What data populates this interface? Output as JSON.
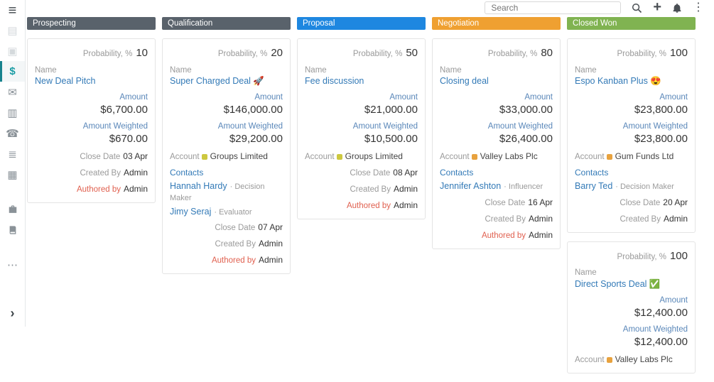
{
  "topbar": {
    "search_placeholder": "Search",
    "icons": [
      "search-icon",
      "plus-icon",
      "bell-icon",
      "kebab-icon"
    ]
  },
  "sidebar": {
    "items": [
      {
        "name": "menu-icon",
        "state": "menu"
      },
      {
        "name": "image-icon",
        "state": "faint"
      },
      {
        "name": "id-card-icon",
        "state": "faint"
      },
      {
        "name": "opportunities-icon",
        "state": "active"
      },
      {
        "name": "email-icon",
        "state": "normal"
      },
      {
        "name": "tasks-icon",
        "state": "normal"
      },
      {
        "name": "calls-icon",
        "state": "normal"
      },
      {
        "name": "checklist-icon",
        "state": "normal"
      },
      {
        "name": "calendar-icon",
        "state": "normal"
      },
      {
        "name": "spacer"
      },
      {
        "name": "briefcase-icon",
        "state": "normal"
      },
      {
        "name": "book-icon",
        "state": "normal"
      },
      {
        "name": "spacer"
      },
      {
        "name": "more-icon",
        "state": "normal"
      }
    ],
    "bottom_item": {
      "name": "chevron-right-icon"
    }
  },
  "labels": {
    "probability": "Probability, %",
    "name": "Name",
    "amount": "Amount",
    "amount_weighted": "Amount Weighted",
    "account": "Account",
    "contacts": "Contacts",
    "close_date": "Close Date",
    "created_by": "Created By",
    "authored_by": "Authored by"
  },
  "board": {
    "columns": [
      {
        "title": "Prospecting",
        "color": "#59626b",
        "cards": [
          {
            "probability": "10",
            "name": "New Deal Pitch",
            "amount": "$6,700.00",
            "amount_weighted": "$670.00",
            "close_date": "03 Apr",
            "created_by": "Admin",
            "authored_by": "Admin"
          }
        ]
      },
      {
        "title": "Qualification",
        "color": "#59626b",
        "cards": [
          {
            "probability": "20",
            "name": "Super Charged Deal 🚀",
            "amount": "$146,000.00",
            "amount_weighted": "$29,200.00",
            "account": {
              "name": "Groups Limited",
              "dot_color": "#cdc83f"
            },
            "contacts": [
              {
                "name": "Hannah Hardy",
                "role": "Decision Maker"
              },
              {
                "name": "Jimy Seraj",
                "role": "Evaluator"
              }
            ],
            "close_date": "07 Apr",
            "created_by": "Admin",
            "authored_by": "Admin"
          }
        ]
      },
      {
        "title": "Proposal",
        "color": "#1e87e0",
        "cards": [
          {
            "probability": "50",
            "name": "Fee discussion",
            "amount": "$21,000.00",
            "amount_weighted": "$10,500.00",
            "account": {
              "name": "Groups Limited",
              "dot_color": "#cdc83f"
            },
            "close_date": "08 Apr",
            "created_by": "Admin",
            "authored_by": "Admin"
          }
        ]
      },
      {
        "title": "Negotiation",
        "color": "#efa031",
        "cards": [
          {
            "probability": "80",
            "name": "Closing deal",
            "amount": "$33,000.00",
            "amount_weighted": "$26,400.00",
            "account": {
              "name": "Valley Labs Plc",
              "dot_color": "#e8a23e"
            },
            "contacts": [
              {
                "name": "Jennifer Ashton",
                "role": "Influencer"
              }
            ],
            "close_date": "16 Apr",
            "created_by": "Admin",
            "authored_by": "Admin"
          }
        ]
      },
      {
        "title": "Closed Won",
        "color": "#80b351",
        "cards": [
          {
            "probability": "100",
            "name": "Espo Kanban Plus 😍",
            "amount": "$23,800.00",
            "amount_weighted": "$23,800.00",
            "account": {
              "name": "Gum Funds Ltd",
              "dot_color": "#e8a23e"
            },
            "contacts": [
              {
                "name": "Barry Ted",
                "role": "Decision Maker"
              }
            ],
            "close_date": "20 Apr",
            "created_by": "Admin"
          },
          {
            "probability": "100",
            "name": "Direct Sports Deal ✅",
            "amount": "$12,400.00",
            "amount_weighted": "$12,400.00",
            "account": {
              "name": "Valley Labs Plc",
              "dot_color": "#e8a23e"
            }
          }
        ]
      }
    ]
  }
}
